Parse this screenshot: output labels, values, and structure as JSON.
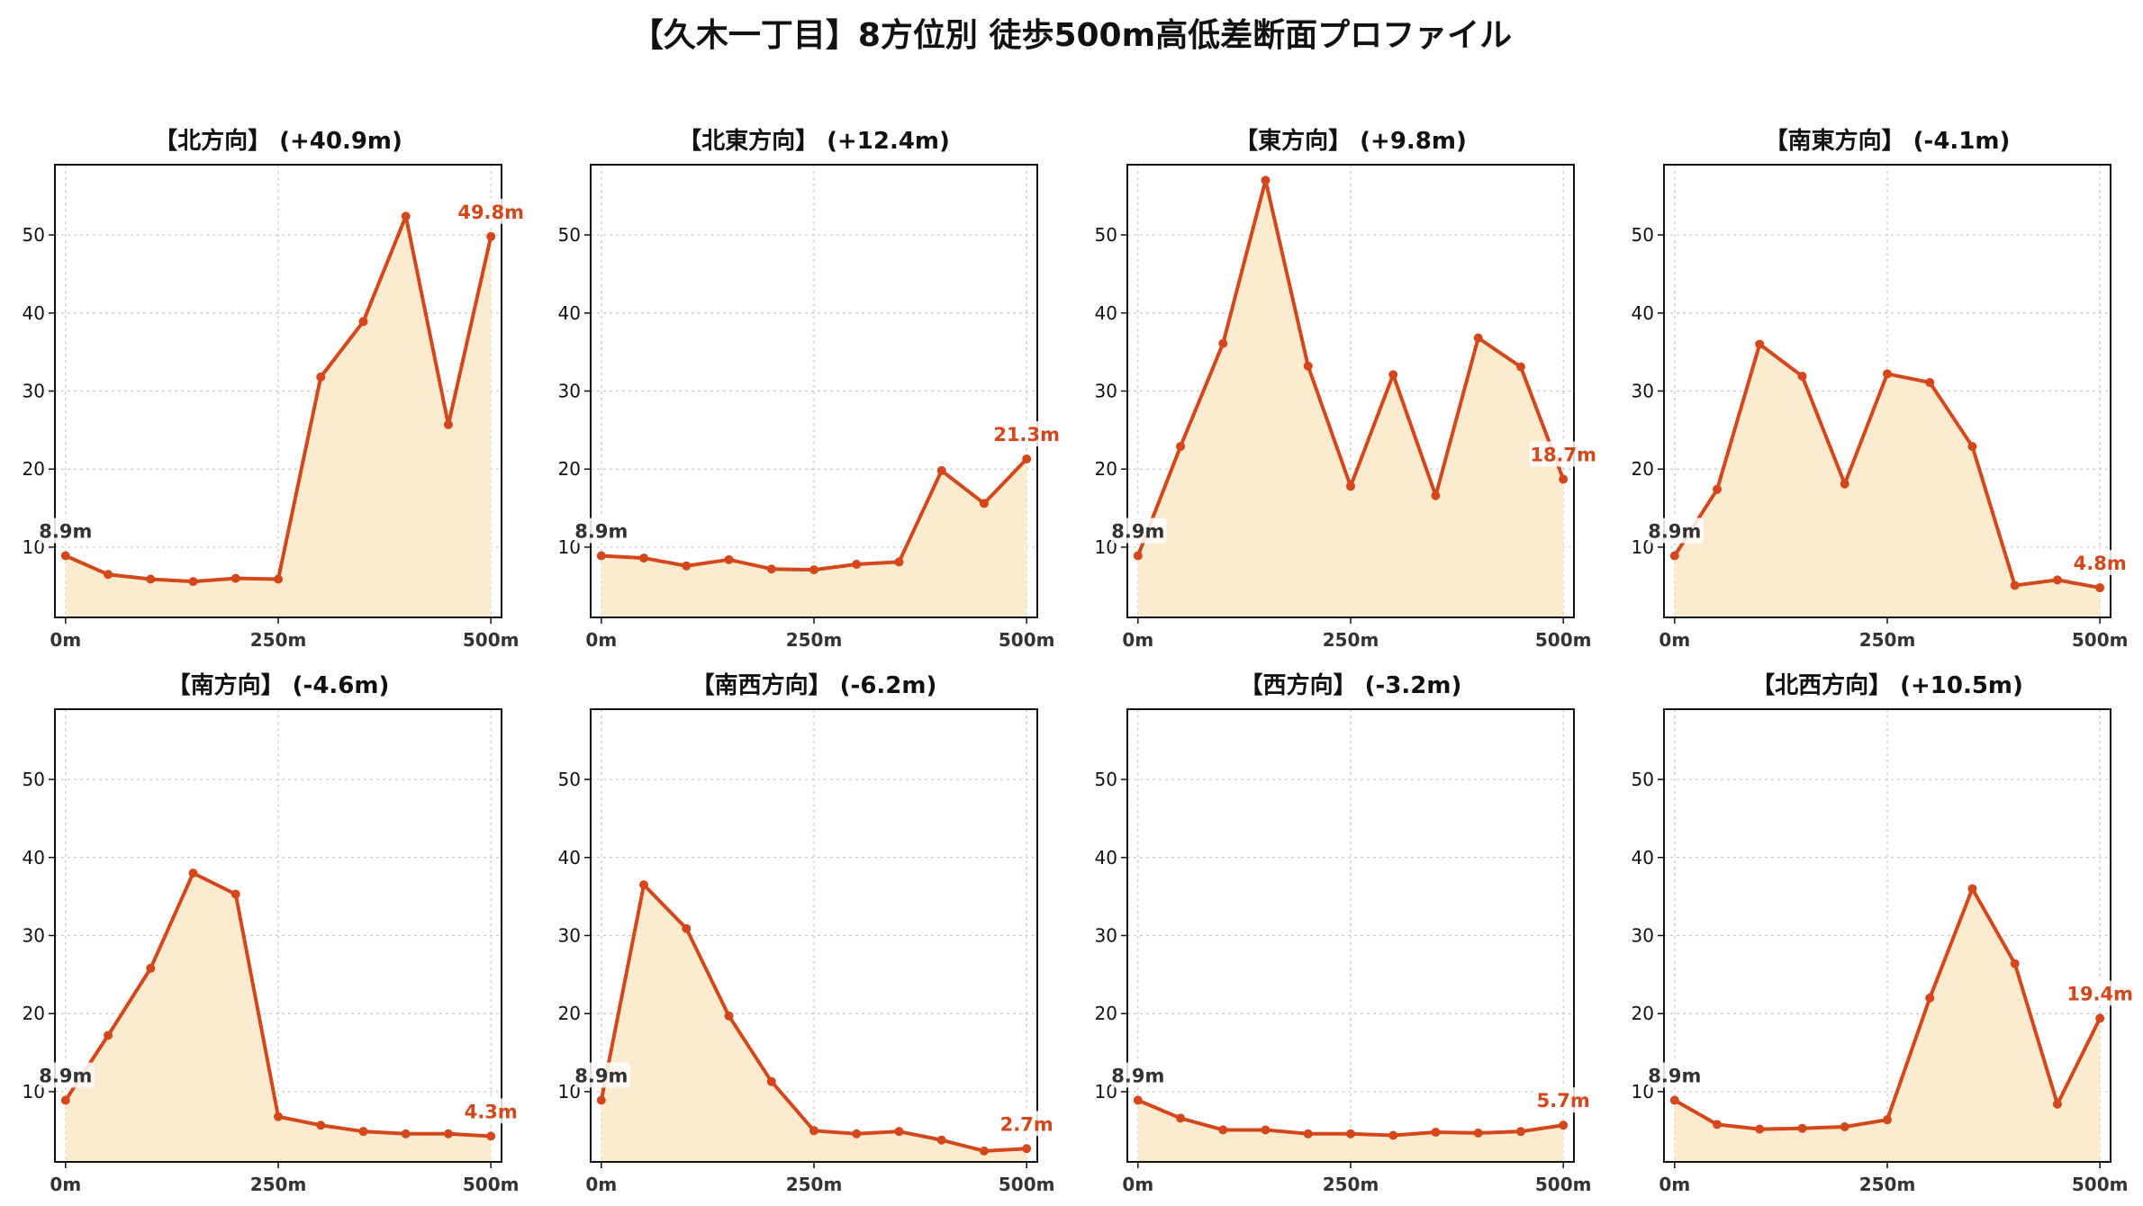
{
  "title": "【久木一丁目】8方位別 徒歩500m高低差断面プロファイル",
  "colors": {
    "line": "#d4471b",
    "fill": "#fdebd0",
    "grid": "#c8c8c8",
    "start_label": "#333333"
  },
  "chart_data": [
    {
      "type": "area",
      "title": "【北方向】 (+40.9m)",
      "x": [
        0,
        50,
        100,
        150,
        200,
        250,
        300,
        350,
        400,
        450,
        500
      ],
      "y": [
        8.9,
        6.5,
        5.9,
        5.6,
        6.0,
        5.9,
        31.8,
        38.9,
        52.4,
        25.7,
        49.8
      ],
      "start_label": "8.9m",
      "end_label": "49.8m",
      "xticks": [
        "0m",
        "250m",
        "500m"
      ],
      "yticks": [
        10,
        20,
        30,
        40,
        50
      ],
      "ylim": [
        1,
        59
      ],
      "grid": true
    },
    {
      "type": "area",
      "title": "【北東方向】 (+12.4m)",
      "x": [
        0,
        50,
        100,
        150,
        200,
        250,
        300,
        350,
        400,
        450,
        500
      ],
      "y": [
        8.9,
        8.6,
        7.6,
        8.4,
        7.2,
        7.1,
        7.8,
        8.1,
        19.8,
        15.6,
        21.3
      ],
      "start_label": "8.9m",
      "end_label": "21.3m",
      "xticks": [
        "0m",
        "250m",
        "500m"
      ],
      "yticks": [
        10,
        20,
        30,
        40,
        50
      ],
      "ylim": [
        1,
        59
      ],
      "grid": true
    },
    {
      "type": "area",
      "title": "【東方向】 (+9.8m)",
      "x": [
        0,
        50,
        100,
        150,
        200,
        250,
        300,
        350,
        400,
        450,
        500
      ],
      "y": [
        8.9,
        22.9,
        36.1,
        57.0,
        33.2,
        17.8,
        32.1,
        16.6,
        36.8,
        33.1,
        18.7
      ],
      "start_label": "8.9m",
      "end_label": "18.7m",
      "xticks": [
        "0m",
        "250m",
        "500m"
      ],
      "yticks": [
        10,
        20,
        30,
        40,
        50
      ],
      "ylim": [
        1,
        59
      ],
      "grid": true
    },
    {
      "type": "area",
      "title": "【南東方向】 (-4.1m)",
      "x": [
        0,
        50,
        100,
        150,
        200,
        250,
        300,
        350,
        400,
        450,
        500
      ],
      "y": [
        8.9,
        17.4,
        36.0,
        31.9,
        18.1,
        32.2,
        31.1,
        22.9,
        5.1,
        5.8,
        4.8
      ],
      "start_label": "8.9m",
      "end_label": "4.8m",
      "xticks": [
        "0m",
        "250m",
        "500m"
      ],
      "yticks": [
        10,
        20,
        30,
        40,
        50
      ],
      "ylim": [
        1,
        59
      ],
      "grid": true
    },
    {
      "type": "area",
      "title": "【南方向】 (-4.6m)",
      "x": [
        0,
        50,
        100,
        150,
        200,
        250,
        300,
        350,
        400,
        450,
        500
      ],
      "y": [
        8.9,
        17.2,
        25.8,
        38.0,
        35.3,
        6.8,
        5.7,
        4.9,
        4.6,
        4.6,
        4.3
      ],
      "start_label": "8.9m",
      "end_label": "4.3m",
      "xticks": [
        "0m",
        "250m",
        "500m"
      ],
      "yticks": [
        10,
        20,
        30,
        40,
        50
      ],
      "ylim": [
        1,
        59
      ],
      "grid": true
    },
    {
      "type": "area",
      "title": "【南西方向】 (-6.2m)",
      "x": [
        0,
        50,
        100,
        150,
        200,
        250,
        300,
        350,
        400,
        450,
        500
      ],
      "y": [
        8.9,
        36.5,
        30.9,
        19.7,
        11.3,
        5.0,
        4.6,
        4.9,
        3.8,
        2.4,
        2.7
      ],
      "start_label": "8.9m",
      "end_label": "2.7m",
      "xticks": [
        "0m",
        "250m",
        "500m"
      ],
      "yticks": [
        10,
        20,
        30,
        40,
        50
      ],
      "ylim": [
        1,
        59
      ],
      "grid": true
    },
    {
      "type": "area",
      "title": "【西方向】 (-3.2m)",
      "x": [
        0,
        50,
        100,
        150,
        200,
        250,
        300,
        350,
        400,
        450,
        500
      ],
      "y": [
        8.9,
        6.6,
        5.1,
        5.1,
        4.6,
        4.6,
        4.4,
        4.8,
        4.7,
        4.9,
        5.7
      ],
      "start_label": "8.9m",
      "end_label": "5.7m",
      "xticks": [
        "0m",
        "250m",
        "500m"
      ],
      "yticks": [
        10,
        20,
        30,
        40,
        50
      ],
      "ylim": [
        1,
        59
      ],
      "grid": true
    },
    {
      "type": "area",
      "title": "【北西方向】 (+10.5m)",
      "x": [
        0,
        50,
        100,
        150,
        200,
        250,
        300,
        350,
        400,
        450,
        500
      ],
      "y": [
        8.9,
        5.8,
        5.2,
        5.3,
        5.5,
        6.4,
        22.0,
        36.0,
        26.4,
        8.4,
        19.4
      ],
      "start_label": "8.9m",
      "end_label": "19.4m",
      "xticks": [
        "0m",
        "250m",
        "500m"
      ],
      "yticks": [
        10,
        20,
        30,
        40,
        50
      ],
      "ylim": [
        1,
        59
      ],
      "grid": true
    }
  ]
}
